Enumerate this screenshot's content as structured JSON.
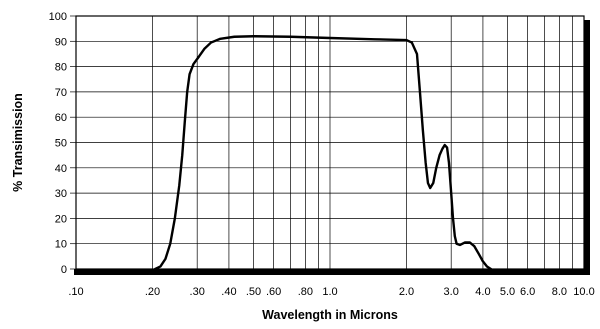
{
  "chart_data": {
    "type": "line",
    "xscale": "log",
    "xlim": [
      0.1,
      10.0
    ],
    "ylim": [
      0,
      100
    ],
    "xlabel": "Wavelength in Microns",
    "ylabel": "% Transimission",
    "grid": true,
    "x_ticks": [
      0.1,
      0.2,
      0.3,
      0.4,
      0.5,
      0.6,
      0.8,
      1.0,
      2.0,
      3.0,
      4.0,
      5.0,
      6.0,
      8.0,
      10.0
    ],
    "x_tick_labels": [
      ".10",
      ".20",
      ".30",
      ".40",
      ".50",
      ".60",
      ".80",
      "1.0",
      "2.0",
      "3.0",
      "4.0",
      "5.0",
      "6.0",
      "8.0",
      "10.0"
    ],
    "x_gridlines": [
      0.2,
      0.3,
      0.4,
      0.5,
      0.6,
      0.7,
      0.8,
      0.9,
      1.0,
      2.0,
      3.0,
      4.0,
      5.0,
      6.0,
      7.0,
      8.0,
      9.0,
      10.0
    ],
    "y_ticks": [
      0,
      10,
      20,
      30,
      40,
      50,
      60,
      70,
      80,
      90,
      100
    ],
    "y_tick_labels": [
      "0",
      "10",
      "20",
      "30",
      "40",
      "50",
      "60",
      "70",
      "80",
      "90",
      "100"
    ],
    "series": [
      {
        "points": [
          [
            0.205,
            0
          ],
          [
            0.215,
            1
          ],
          [
            0.225,
            4
          ],
          [
            0.235,
            10
          ],
          [
            0.245,
            20
          ],
          [
            0.255,
            33
          ],
          [
            0.262,
            45
          ],
          [
            0.268,
            58
          ],
          [
            0.274,
            70
          ],
          [
            0.28,
            77
          ],
          [
            0.29,
            81
          ],
          [
            0.305,
            84
          ],
          [
            0.32,
            87
          ],
          [
            0.34,
            89.5
          ],
          [
            0.37,
            91
          ],
          [
            0.42,
            91.8
          ],
          [
            0.5,
            92
          ],
          [
            0.7,
            91.8
          ],
          [
            1.0,
            91.3
          ],
          [
            1.5,
            90.8
          ],
          [
            2.0,
            90.5
          ],
          [
            2.1,
            89.5
          ],
          [
            2.2,
            85
          ],
          [
            2.26,
            70
          ],
          [
            2.32,
            55
          ],
          [
            2.38,
            42
          ],
          [
            2.43,
            34
          ],
          [
            2.48,
            32
          ],
          [
            2.55,
            34
          ],
          [
            2.62,
            40
          ],
          [
            2.7,
            45
          ],
          [
            2.77,
            47.5
          ],
          [
            2.83,
            49
          ],
          [
            2.89,
            48
          ],
          [
            2.94,
            42
          ],
          [
            3.0,
            30
          ],
          [
            3.05,
            20
          ],
          [
            3.1,
            13
          ],
          [
            3.15,
            10
          ],
          [
            3.25,
            9.5
          ],
          [
            3.4,
            10.5
          ],
          [
            3.55,
            10.5
          ],
          [
            3.7,
            9
          ],
          [
            3.85,
            6
          ],
          [
            4.0,
            3
          ],
          [
            4.15,
            1
          ],
          [
            4.3,
            0
          ]
        ]
      }
    ]
  }
}
